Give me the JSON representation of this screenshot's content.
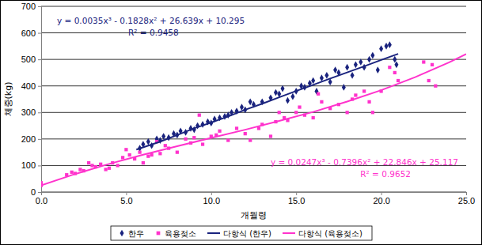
{
  "chart_data": {
    "type": "scatter",
    "x_label": "개월령",
    "y_label": "체중(kg)",
    "xlim": [
      0,
      25
    ],
    "xticks": [
      {
        "value": 0,
        "label": "0.0"
      },
      {
        "value": 5,
        "label": "5.0"
      },
      {
        "value": 10,
        "label": "10.0"
      },
      {
        "value": 15,
        "label": "15.0"
      },
      {
        "value": 20,
        "label": "20.0"
      },
      {
        "value": 25,
        "label": "25.0"
      }
    ],
    "ylim": [
      0,
      700
    ],
    "yticks": [
      0,
      100,
      200,
      300,
      400,
      500,
      600,
      700
    ],
    "grid": true,
    "legend": "bottom",
    "annotations": [
      "y = 0.0035x³ - 0.1828x² + 26.639x + 10.295",
      "R² = 0.9458",
      "y = 0.0247x³ - 0.7396x² + 22.846x + 25.117",
      "R² = 0.9652"
    ],
    "series": [
      {
        "name": "한우",
        "type": "scatter",
        "color": "#1a237e",
        "marker": "diamond",
        "x": [
          5.8,
          6.0,
          6.3,
          6.5,
          6.8,
          7.0,
          7.2,
          7.5,
          7.8,
          8.0,
          8.2,
          8.5,
          8.8,
          9.0,
          9.2,
          9.5,
          9.8,
          10.0,
          10.2,
          10.5,
          10.8,
          11.0,
          11.2,
          11.5,
          11.8,
          12.0,
          12.3,
          12.5,
          13.0,
          13.5,
          13.8,
          14.0,
          14.2,
          14.5,
          14.8,
          15.0,
          15.3,
          15.5,
          15.8,
          16.0,
          16.2,
          16.5,
          16.8,
          17.0,
          17.3,
          17.5,
          17.8,
          18.0,
          18.3,
          18.5,
          18.8,
          19.0,
          19.3,
          19.5,
          19.8,
          20.0,
          20.3,
          20.5,
          20.8,
          20.9
        ],
        "values": [
          165,
          180,
          190,
          175,
          200,
          195,
          210,
          205,
          220,
          215,
          230,
          225,
          240,
          235,
          250,
          255,
          265,
          260,
          275,
          280,
          285,
          290,
          300,
          305,
          320,
          310,
          340,
          330,
          340,
          355,
          375,
          370,
          390,
          345,
          360,
          380,
          400,
          395,
          410,
          420,
          380,
          430,
          440,
          415,
          460,
          450,
          395,
          470,
          440,
          480,
          490,
          470,
          500,
          515,
          460,
          540,
          550,
          555,
          500,
          480
        ]
      },
      {
        "name": "육용젖소",
        "type": "scatter",
        "color": "#ff33cc",
        "marker": "square",
        "x": [
          0.0,
          0.0,
          1.5,
          1.8,
          2.0,
          2.3,
          2.5,
          2.8,
          3.0,
          3.2,
          3.5,
          3.8,
          4.0,
          4.2,
          4.5,
          4.8,
          5.0,
          5.2,
          5.5,
          5.8,
          6.0,
          6.3,
          6.5,
          6.8,
          7.0,
          7.3,
          7.5,
          8.0,
          8.5,
          8.8,
          9.0,
          9.3,
          9.5,
          10.0,
          10.3,
          10.5,
          11.0,
          11.5,
          12.0,
          12.3,
          12.8,
          13.0,
          13.5,
          13.8,
          14.0,
          14.3,
          14.5,
          15.0,
          15.2,
          15.5,
          16.0,
          16.3,
          16.5,
          17.0,
          17.5,
          18.0,
          18.3,
          18.5,
          19.0,
          19.3,
          19.5,
          20.0,
          20.5,
          20.8,
          21.0,
          22.5,
          22.8,
          23.0,
          23.2
        ],
        "values": [
          25,
          35,
          65,
          75,
          70,
          85,
          80,
          110,
          100,
          95,
          105,
          85,
          90,
          110,
          100,
          130,
          160,
          140,
          125,
          150,
          110,
          135,
          140,
          190,
          145,
          175,
          165,
          150,
          200,
          185,
          205,
          290,
          180,
          210,
          215,
          230,
          195,
          240,
          220,
          195,
          240,
          255,
          210,
          265,
          300,
          280,
          270,
          300,
          320,
          290,
          280,
          370,
          340,
          315,
          330,
          300,
          350,
          365,
          380,
          340,
          300,
          380,
          470,
          450,
          420,
          490,
          420,
          480,
          400
        ]
      },
      {
        "name": "다항식 (한우)",
        "type": "line",
        "color": "#1a237e",
        "line_style": "solid",
        "x": [
          5.6,
          7,
          8,
          9,
          10,
          11,
          12,
          13,
          14,
          15,
          16,
          17,
          18,
          19,
          20,
          21
        ],
        "values": [
          160,
          190,
          215,
          240,
          262,
          285,
          310,
          333,
          357,
          381,
          404,
          428,
          451,
          474,
          498,
          521
        ]
      },
      {
        "name": "다항식 (육용젖소)",
        "type": "line",
        "color": "#ff33cc",
        "line_style": "solid",
        "x": [
          0,
          2,
          4,
          6,
          8,
          10,
          12,
          14,
          16,
          18,
          20,
          22,
          24,
          25
        ],
        "values": [
          25,
          68,
          106,
          141,
          173,
          204,
          235,
          268,
          302,
          341,
          384,
          433,
          489,
          520
        ]
      }
    ]
  }
}
